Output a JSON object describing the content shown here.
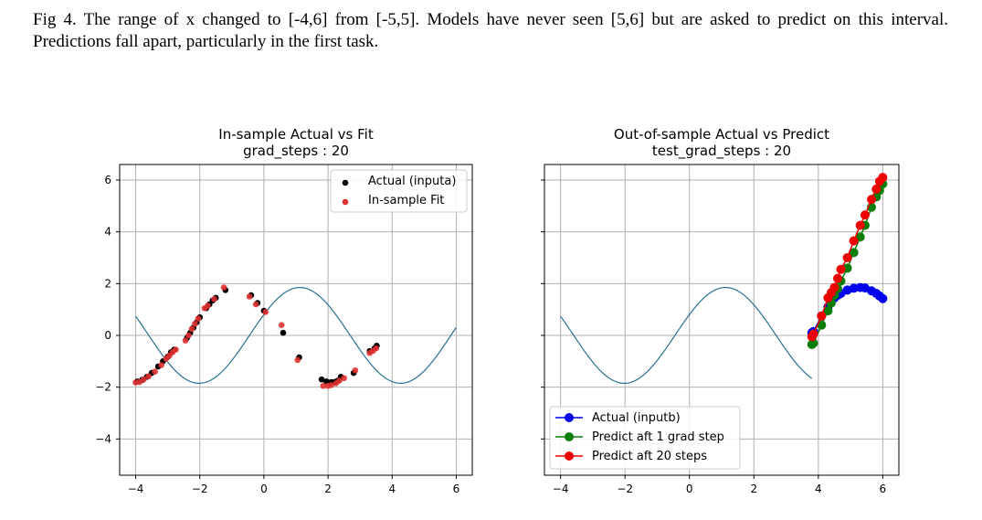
{
  "caption": "Fig 4. The range of x changed to [-4,6] from [-5,5]. Models have never seen [5,6] but are asked to predict on this interval. Predictions fall apart, particularly in the first task.",
  "colors": {
    "curve": "#2a7094",
    "actual_a": "#000000",
    "fit": "#e03030",
    "actual_b": "#0000ee",
    "pred1": "#0a7d0a",
    "pred20": "#ee0000",
    "grid": "#b0b0b0"
  },
  "chart_data": [
    {
      "type": "scatter",
      "title": "In-sample Actual vs Fit",
      "subtitle": "grad_steps : 20",
      "xlim": [
        -4.5,
        6.5
      ],
      "ylim": [
        -5.4,
        6.6
      ],
      "xticks": [
        -4,
        -2,
        0,
        2,
        4,
        6
      ],
      "yticks": [
        6,
        4,
        2,
        0,
        -2,
        -4
      ],
      "xtick_labels": [
        "−4",
        "−2",
        "0",
        "2",
        "4",
        "6"
      ],
      "ytick_labels": [
        "6",
        "4",
        "2",
        "0",
        "−2",
        "−4"
      ],
      "grid": true,
      "legend_position": "top-right",
      "curve": {
        "amplitude": 1.85,
        "phase": 0.45,
        "x_range": [
          -4,
          6
        ]
      },
      "series": [
        {
          "name": "Actual (inputa)",
          "marker": "dot",
          "points": [
            [
              -3.95,
              -1.78
            ],
            [
              -3.8,
              -1.72
            ],
            [
              -3.65,
              -1.6
            ],
            [
              -3.5,
              -1.45
            ],
            [
              -3.3,
              -1.2
            ],
            [
              -3.15,
              -1.0
            ],
            [
              -3.0,
              -0.82
            ],
            [
              -2.9,
              -0.65
            ],
            [
              -2.8,
              -0.55
            ],
            [
              -2.4,
              -0.1
            ],
            [
              -2.3,
              0.1
            ],
            [
              -2.2,
              0.3
            ],
            [
              -2.1,
              0.5
            ],
            [
              -2.0,
              0.7
            ],
            [
              -1.8,
              1.05
            ],
            [
              -1.7,
              1.2
            ],
            [
              -1.6,
              1.35
            ],
            [
              -1.5,
              1.45
            ],
            [
              -1.2,
              1.75
            ],
            [
              -0.4,
              1.55
            ],
            [
              -0.2,
              1.25
            ],
            [
              0.0,
              0.95
            ],
            [
              0.6,
              0.1
            ],
            [
              1.1,
              -0.85
            ],
            [
              1.8,
              -1.7
            ],
            [
              1.95,
              -1.78
            ],
            [
              2.1,
              -1.8
            ],
            [
              2.2,
              -1.8
            ],
            [
              2.3,
              -1.75
            ],
            [
              2.4,
              -1.6
            ],
            [
              2.8,
              -1.45
            ],
            [
              3.3,
              -0.6
            ],
            [
              3.45,
              -0.5
            ],
            [
              3.52,
              -0.4
            ]
          ]
        },
        {
          "name": "In-sample Fit",
          "marker": "dot",
          "points": [
            [
              -4.0,
              -1.82
            ],
            [
              -3.88,
              -1.8
            ],
            [
              -3.75,
              -1.7
            ],
            [
              -3.6,
              -1.58
            ],
            [
              -3.4,
              -1.4
            ],
            [
              -3.2,
              -1.15
            ],
            [
              -3.05,
              -0.9
            ],
            [
              -2.95,
              -0.78
            ],
            [
              -2.85,
              -0.65
            ],
            [
              -2.75,
              -0.55
            ],
            [
              -2.45,
              -0.2
            ],
            [
              -2.35,
              0.0
            ],
            [
              -2.25,
              0.25
            ],
            [
              -2.15,
              0.45
            ],
            [
              -2.05,
              0.65
            ],
            [
              -1.85,
              1.05
            ],
            [
              -1.75,
              1.15
            ],
            [
              -1.55,
              1.4
            ],
            [
              -1.25,
              1.85
            ],
            [
              -0.45,
              1.5
            ],
            [
              -0.25,
              1.2
            ],
            [
              0.05,
              0.9
            ],
            [
              0.55,
              0.4
            ],
            [
              1.05,
              -0.95
            ],
            [
              1.85,
              -1.95
            ],
            [
              2.0,
              -1.95
            ],
            [
              2.1,
              -1.92
            ],
            [
              2.25,
              -1.85
            ],
            [
              2.35,
              -1.75
            ],
            [
              2.5,
              -1.65
            ],
            [
              2.85,
              -1.35
            ],
            [
              3.3,
              -0.68
            ],
            [
              3.4,
              -0.6
            ],
            [
              3.5,
              -0.5
            ]
          ]
        }
      ]
    },
    {
      "type": "line",
      "title": "Out-of-sample Actual vs Predict",
      "subtitle": "test_grad_steps : 20",
      "xlim": [
        -4.5,
        6.5
      ],
      "ylim": [
        -5.4,
        6.6
      ],
      "xticks": [
        -4,
        -2,
        0,
        2,
        4,
        6
      ],
      "yticks": [
        6,
        4,
        2,
        0,
        -2,
        -4
      ],
      "xtick_labels": [
        "−4",
        "−2",
        "0",
        "2",
        "4",
        "6"
      ],
      "grid": true,
      "legend_position": "bottom-left",
      "curve": {
        "amplitude": 1.85,
        "phase": 0.45,
        "x_range": [
          -4,
          3.8
        ]
      },
      "series": [
        {
          "name": "Actual (inputb)",
          "marker": "dot-line",
          "points": [
            [
              3.8,
              0.1
            ],
            [
              3.85,
              0.15
            ],
            [
              4.1,
              0.75
            ],
            [
              4.3,
              1.1
            ],
            [
              4.4,
              1.3
            ],
            [
              4.5,
              1.45
            ],
            [
              4.6,
              1.55
            ],
            [
              4.7,
              1.62
            ],
            [
              4.9,
              1.75
            ],
            [
              5.1,
              1.82
            ],
            [
              5.3,
              1.85
            ],
            [
              5.45,
              1.83
            ],
            [
              5.65,
              1.72
            ],
            [
              5.8,
              1.62
            ],
            [
              5.9,
              1.52
            ],
            [
              6.0,
              1.42
            ]
          ]
        },
        {
          "name": "Predict aft 1 grad step",
          "marker": "dot-line",
          "points": [
            [
              3.8,
              -0.35
            ],
            [
              3.85,
              -0.3
            ],
            [
              4.1,
              0.4
            ],
            [
              4.3,
              0.95
            ],
            [
              4.4,
              1.25
            ],
            [
              4.5,
              1.55
            ],
            [
              4.6,
              1.8
            ],
            [
              4.7,
              2.1
            ],
            [
              4.9,
              2.6
            ],
            [
              5.1,
              3.2
            ],
            [
              5.3,
              3.8
            ],
            [
              5.45,
              4.25
            ],
            [
              5.65,
              4.95
            ],
            [
              5.8,
              5.35
            ],
            [
              5.9,
              5.6
            ],
            [
              6.0,
              5.85
            ]
          ]
        },
        {
          "name": "Predict aft 20 steps",
          "marker": "dot-line",
          "points": [
            [
              3.8,
              -0.05
            ],
            [
              3.85,
              0.05
            ],
            [
              4.1,
              0.75
            ],
            [
              4.3,
              1.45
            ],
            [
              4.4,
              1.65
            ],
            [
              4.5,
              1.85
            ],
            [
              4.6,
              2.2
            ],
            [
              4.7,
              2.55
            ],
            [
              4.9,
              3.0
            ],
            [
              5.1,
              3.65
            ],
            [
              5.3,
              4.25
            ],
            [
              5.45,
              4.65
            ],
            [
              5.65,
              5.25
            ],
            [
              5.8,
              5.65
            ],
            [
              5.9,
              5.95
            ],
            [
              6.0,
              6.1
            ]
          ]
        }
      ]
    }
  ]
}
